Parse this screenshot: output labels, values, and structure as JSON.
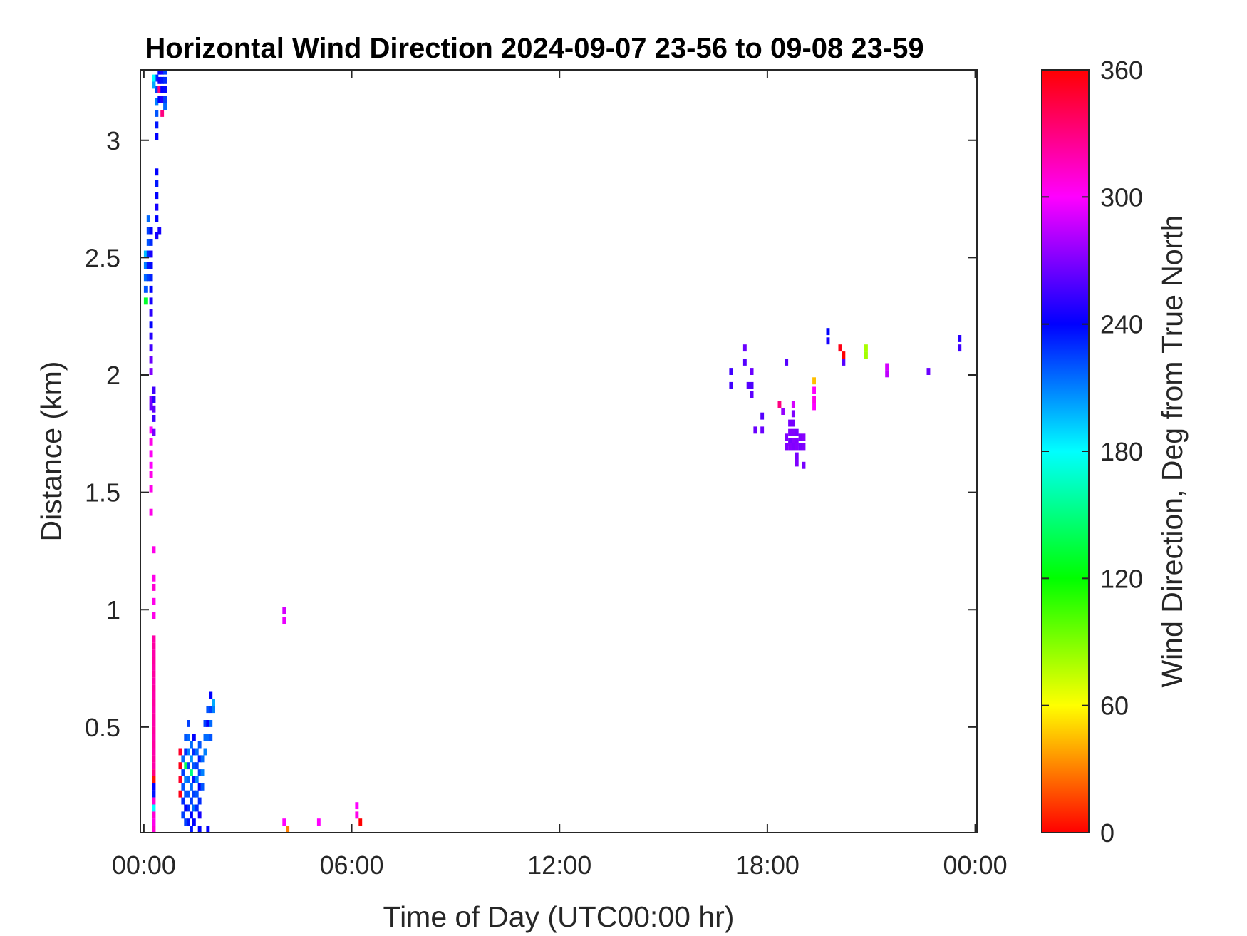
{
  "chart_data": {
    "type": "heatmap",
    "title": "Horizontal Wind Direction 2024-09-07 23-56 to 09-08 23-59",
    "xlabel": "Time of Day (UTC00:00 hr)",
    "ylabel": "Distance (km)",
    "colorbar_label": "Wind Direction, Deg from True North",
    "xlim": [
      -0.1,
      24.05
    ],
    "ylim": [
      0.05,
      3.3
    ],
    "clim": [
      0,
      360
    ],
    "x_ticks": [
      0,
      6,
      12,
      18,
      24
    ],
    "x_tick_labels": [
      "00:00",
      "06:00",
      "12:00",
      "18:00",
      "00:00"
    ],
    "y_ticks": [
      0.5,
      1,
      1.5,
      2,
      2.5,
      3
    ],
    "y_tick_labels": [
      "0.5",
      "1",
      "1.5",
      "2",
      "2.5",
      "3"
    ],
    "colorbar_ticks": [
      0,
      60,
      120,
      180,
      240,
      300,
      360
    ],
    "colorbar_tick_labels": [
      "0",
      "60",
      "120",
      "180",
      "240",
      "300",
      "360"
    ],
    "colormap": [
      "#ff0000",
      "#ffff00",
      "#00ff00",
      "#00ffff",
      "#0000ff",
      "#ff00ff",
      "#ff0000"
    ],
    "cell_width_hr": 0.1,
    "cell_height_km": 0.03,
    "cells": [
      {
        "x": 0.0,
        "y": 2.5,
        "v": 195
      },
      {
        "x": 0.0,
        "y": 2.45,
        "v": 210
      },
      {
        "x": 0.0,
        "y": 2.4,
        "v": 215
      },
      {
        "x": 0.0,
        "y": 2.35,
        "v": 220
      },
      {
        "x": 0.0,
        "y": 2.3,
        "v": 130
      },
      {
        "x": 0.08,
        "y": 2.65,
        "v": 215
      },
      {
        "x": 0.08,
        "y": 2.6,
        "v": 225
      },
      {
        "x": 0.08,
        "y": 2.55,
        "v": 220
      },
      {
        "x": 0.08,
        "y": 2.5,
        "v": 230
      },
      {
        "x": 0.08,
        "y": 2.45,
        "v": 235
      },
      {
        "x": 0.08,
        "y": 2.4,
        "v": 225
      },
      {
        "x": 0.16,
        "y": 2.6,
        "v": 240
      },
      {
        "x": 0.16,
        "y": 2.55,
        "v": 230
      },
      {
        "x": 0.16,
        "y": 2.5,
        "v": 245
      },
      {
        "x": 0.16,
        "y": 2.45,
        "v": 238
      },
      {
        "x": 0.16,
        "y": 2.4,
        "v": 232
      },
      {
        "x": 0.16,
        "y": 2.35,
        "v": 240
      },
      {
        "x": 0.16,
        "y": 2.3,
        "v": 245
      },
      {
        "x": 0.16,
        "y": 2.25,
        "v": 250
      },
      {
        "x": 0.16,
        "y": 2.2,
        "v": 240
      },
      {
        "x": 0.16,
        "y": 2.15,
        "v": 248
      },
      {
        "x": 0.16,
        "y": 2.1,
        "v": 255
      },
      {
        "x": 0.16,
        "y": 2.05,
        "v": 265
      },
      {
        "x": 0.16,
        "y": 2.0,
        "v": 270
      },
      {
        "x": 0.16,
        "y": 1.88,
        "v": 270
      },
      {
        "x": 0.16,
        "y": 1.85,
        "v": 265
      },
      {
        "x": 0.24,
        "y": 1.92,
        "v": 255
      },
      {
        "x": 0.24,
        "y": 1.88,
        "v": 250
      },
      {
        "x": 0.24,
        "y": 1.84,
        "v": 262
      },
      {
        "x": 0.24,
        "y": 1.8,
        "v": 255
      },
      {
        "x": 0.16,
        "y": 1.75,
        "v": 300
      },
      {
        "x": 0.16,
        "y": 1.7,
        "v": 305
      },
      {
        "x": 0.16,
        "y": 1.65,
        "v": 302
      },
      {
        "x": 0.16,
        "y": 1.6,
        "v": 300
      },
      {
        "x": 0.16,
        "y": 1.56,
        "v": 305
      },
      {
        "x": 0.16,
        "y": 1.5,
        "v": 305
      },
      {
        "x": 0.24,
        "y": 1.74,
        "v": 268
      },
      {
        "x": 0.16,
        "y": 1.4,
        "v": 305
      },
      {
        "x": 0.24,
        "y": 1.24,
        "v": 305
      },
      {
        "x": 0.24,
        "y": 1.12,
        "v": 305
      },
      {
        "x": 0.24,
        "y": 1.08,
        "v": 310
      },
      {
        "x": 0.24,
        "y": 1.02,
        "v": 305
      },
      {
        "x": 0.24,
        "y": 0.96,
        "v": 305
      },
      {
        "x": 0.24,
        "y": 0.86,
        "v": 320
      },
      {
        "x": 0.24,
        "y": 0.83,
        "v": 322
      },
      {
        "x": 0.24,
        "y": 0.8,
        "v": 320
      },
      {
        "x": 0.24,
        "y": 0.77,
        "v": 322
      },
      {
        "x": 0.24,
        "y": 0.74,
        "v": 320
      },
      {
        "x": 0.24,
        "y": 0.71,
        "v": 322
      },
      {
        "x": 0.24,
        "y": 0.68,
        "v": 320
      },
      {
        "x": 0.24,
        "y": 0.65,
        "v": 322
      },
      {
        "x": 0.24,
        "y": 0.62,
        "v": 320
      },
      {
        "x": 0.24,
        "y": 0.59,
        "v": 322
      },
      {
        "x": 0.24,
        "y": 0.56,
        "v": 320
      },
      {
        "x": 0.24,
        "y": 0.53,
        "v": 322
      },
      {
        "x": 0.24,
        "y": 0.5,
        "v": 320
      },
      {
        "x": 0.24,
        "y": 0.47,
        "v": 322
      },
      {
        "x": 0.24,
        "y": 0.44,
        "v": 320
      },
      {
        "x": 0.24,
        "y": 0.41,
        "v": 322
      },
      {
        "x": 0.24,
        "y": 0.38,
        "v": 320
      },
      {
        "x": 0.24,
        "y": 0.35,
        "v": 322
      },
      {
        "x": 0.24,
        "y": 0.32,
        "v": 320
      },
      {
        "x": 0.24,
        "y": 0.29,
        "v": 330
      },
      {
        "x": 0.24,
        "y": 0.26,
        "v": 5
      },
      {
        "x": 0.24,
        "y": 0.23,
        "v": 240
      },
      {
        "x": 0.24,
        "y": 0.2,
        "v": 235
      },
      {
        "x": 0.24,
        "y": 0.17,
        "v": 310
      },
      {
        "x": 0.24,
        "y": 0.14,
        "v": 180
      },
      {
        "x": 0.24,
        "y": 0.11,
        "v": 310
      },
      {
        "x": 0.24,
        "y": 0.08,
        "v": 305
      },
      {
        "x": 0.24,
        "y": 0.05,
        "v": 310
      },
      {
        "x": 0.32,
        "y": 2.85,
        "v": 240
      },
      {
        "x": 0.32,
        "y": 2.8,
        "v": 235
      },
      {
        "x": 0.32,
        "y": 2.75,
        "v": 240
      },
      {
        "x": 0.32,
        "y": 2.7,
        "v": 245
      },
      {
        "x": 0.32,
        "y": 2.65,
        "v": 240
      },
      {
        "x": 0.32,
        "y": 2.58,
        "v": 245
      },
      {
        "x": 0.32,
        "y": 3.0,
        "v": 240
      },
      {
        "x": 0.32,
        "y": 3.05,
        "v": 235
      },
      {
        "x": 0.32,
        "y": 3.1,
        "v": 220
      },
      {
        "x": 0.32,
        "y": 3.15,
        "v": 210
      },
      {
        "x": 0.32,
        "y": 3.2,
        "v": 225
      },
      {
        "x": 0.32,
        "y": 3.25,
        "v": 230
      },
      {
        "x": 0.24,
        "y": 3.25,
        "v": 180
      },
      {
        "x": 0.24,
        "y": 3.22,
        "v": 200
      },
      {
        "x": 0.4,
        "y": 3.28,
        "v": 240
      },
      {
        "x": 0.4,
        "y": 3.24,
        "v": 245
      },
      {
        "x": 0.4,
        "y": 3.2,
        "v": 330
      },
      {
        "x": 0.4,
        "y": 3.16,
        "v": 240
      },
      {
        "x": 0.48,
        "y": 3.28,
        "v": 245
      },
      {
        "x": 0.48,
        "y": 3.24,
        "v": 235
      },
      {
        "x": 0.48,
        "y": 3.2,
        "v": 240
      },
      {
        "x": 0.48,
        "y": 3.16,
        "v": 248
      },
      {
        "x": 0.48,
        "y": 3.1,
        "v": 330
      },
      {
        "x": 0.56,
        "y": 3.28,
        "v": 225
      },
      {
        "x": 0.56,
        "y": 3.24,
        "v": 230
      },
      {
        "x": 0.56,
        "y": 3.2,
        "v": 238
      },
      {
        "x": 0.56,
        "y": 3.16,
        "v": 225
      },
      {
        "x": 0.56,
        "y": 3.13,
        "v": 215
      },
      {
        "x": 0.4,
        "y": 2.6,
        "v": 245
      },
      {
        "x": 1.0,
        "y": 0.38,
        "v": 350
      },
      {
        "x": 1.0,
        "y": 0.32,
        "v": 355
      },
      {
        "x": 1.0,
        "y": 0.26,
        "v": 350
      },
      {
        "x": 1.0,
        "y": 0.2,
        "v": 355
      },
      {
        "x": 1.08,
        "y": 0.35,
        "v": 215
      },
      {
        "x": 1.08,
        "y": 0.29,
        "v": 225
      },
      {
        "x": 1.08,
        "y": 0.23,
        "v": 220
      },
      {
        "x": 1.08,
        "y": 0.17,
        "v": 230
      },
      {
        "x": 1.08,
        "y": 0.11,
        "v": 225
      },
      {
        "x": 1.16,
        "y": 0.44,
        "v": 220
      },
      {
        "x": 1.16,
        "y": 0.38,
        "v": 230
      },
      {
        "x": 1.16,
        "y": 0.32,
        "v": 140
      },
      {
        "x": 1.16,
        "y": 0.26,
        "v": 210
      },
      {
        "x": 1.16,
        "y": 0.2,
        "v": 220
      },
      {
        "x": 1.16,
        "y": 0.14,
        "v": 240
      },
      {
        "x": 1.16,
        "y": 0.08,
        "v": 225
      },
      {
        "x": 1.24,
        "y": 0.5,
        "v": 225
      },
      {
        "x": 1.24,
        "y": 0.44,
        "v": 215
      },
      {
        "x": 1.24,
        "y": 0.38,
        "v": 210
      },
      {
        "x": 1.24,
        "y": 0.32,
        "v": 225
      },
      {
        "x": 1.24,
        "y": 0.26,
        "v": 215
      },
      {
        "x": 1.24,
        "y": 0.2,
        "v": 220
      },
      {
        "x": 1.24,
        "y": 0.14,
        "v": 230
      },
      {
        "x": 1.24,
        "y": 0.08,
        "v": 235
      },
      {
        "x": 1.32,
        "y": 0.41,
        "v": 215
      },
      {
        "x": 1.32,
        "y": 0.35,
        "v": 205
      },
      {
        "x": 1.32,
        "y": 0.29,
        "v": 150
      },
      {
        "x": 1.32,
        "y": 0.23,
        "v": 215
      },
      {
        "x": 1.32,
        "y": 0.17,
        "v": 225
      },
      {
        "x": 1.32,
        "y": 0.11,
        "v": 240
      },
      {
        "x": 1.32,
        "y": 0.05,
        "v": 235
      },
      {
        "x": 1.4,
        "y": 0.44,
        "v": 240
      },
      {
        "x": 1.4,
        "y": 0.38,
        "v": 230
      },
      {
        "x": 1.4,
        "y": 0.32,
        "v": 220
      },
      {
        "x": 1.4,
        "y": 0.26,
        "v": 235
      },
      {
        "x": 1.4,
        "y": 0.2,
        "v": 225
      },
      {
        "x": 1.4,
        "y": 0.14,
        "v": 215
      },
      {
        "x": 1.4,
        "y": 0.08,
        "v": 240
      },
      {
        "x": 1.48,
        "y": 0.38,
        "v": 215
      },
      {
        "x": 1.48,
        "y": 0.32,
        "v": 225
      },
      {
        "x": 1.48,
        "y": 0.26,
        "v": 210
      },
      {
        "x": 1.48,
        "y": 0.2,
        "v": 220
      },
      {
        "x": 1.48,
        "y": 0.14,
        "v": 230
      },
      {
        "x": 1.56,
        "y": 0.41,
        "v": 220
      },
      {
        "x": 1.56,
        "y": 0.35,
        "v": 235
      },
      {
        "x": 1.56,
        "y": 0.29,
        "v": 225
      },
      {
        "x": 1.56,
        "y": 0.23,
        "v": 240
      },
      {
        "x": 1.56,
        "y": 0.17,
        "v": 230
      },
      {
        "x": 1.56,
        "y": 0.11,
        "v": 245
      },
      {
        "x": 1.56,
        "y": 0.05,
        "v": 240
      },
      {
        "x": 1.64,
        "y": 0.35,
        "v": 215
      },
      {
        "x": 1.64,
        "y": 0.29,
        "v": 210
      },
      {
        "x": 1.64,
        "y": 0.23,
        "v": 220
      },
      {
        "x": 1.72,
        "y": 0.5,
        "v": 225
      },
      {
        "x": 1.72,
        "y": 0.44,
        "v": 215
      },
      {
        "x": 1.72,
        "y": 0.38,
        "v": 210
      },
      {
        "x": 1.8,
        "y": 0.56,
        "v": 220
      },
      {
        "x": 1.8,
        "y": 0.5,
        "v": 240
      },
      {
        "x": 1.8,
        "y": 0.44,
        "v": 215
      },
      {
        "x": 1.8,
        "y": 0.05,
        "v": 240
      },
      {
        "x": 1.88,
        "y": 0.62,
        "v": 240
      },
      {
        "x": 1.88,
        "y": 0.56,
        "v": 225
      },
      {
        "x": 1.88,
        "y": 0.5,
        "v": 215
      },
      {
        "x": 1.88,
        "y": 0.44,
        "v": 220
      },
      {
        "x": 1.96,
        "y": 0.59,
        "v": 200
      },
      {
        "x": 1.96,
        "y": 0.56,
        "v": 210
      },
      {
        "x": 4.0,
        "y": 0.98,
        "v": 290
      },
      {
        "x": 4.0,
        "y": 0.94,
        "v": 295
      },
      {
        "x": 4.0,
        "y": 0.08,
        "v": 300
      },
      {
        "x": 4.1,
        "y": 0.05,
        "v": 30
      },
      {
        "x": 5.0,
        "y": 0.08,
        "v": 300
      },
      {
        "x": 6.1,
        "y": 0.15,
        "v": 300
      },
      {
        "x": 6.1,
        "y": 0.11,
        "v": 305
      },
      {
        "x": 6.2,
        "y": 0.08,
        "v": 0
      },
      {
        "x": 16.9,
        "y": 2.0,
        "v": 255
      },
      {
        "x": 16.9,
        "y": 1.94,
        "v": 255
      },
      {
        "x": 17.3,
        "y": 2.1,
        "v": 265
      },
      {
        "x": 17.3,
        "y": 2.04,
        "v": 260
      },
      {
        "x": 17.4,
        "y": 1.94,
        "v": 260
      },
      {
        "x": 17.5,
        "y": 2.0,
        "v": 265
      },
      {
        "x": 17.5,
        "y": 1.94,
        "v": 258
      },
      {
        "x": 17.5,
        "y": 1.9,
        "v": 262
      },
      {
        "x": 17.6,
        "y": 1.75,
        "v": 265
      },
      {
        "x": 17.8,
        "y": 1.81,
        "v": 260
      },
      {
        "x": 17.8,
        "y": 1.75,
        "v": 265
      },
      {
        "x": 18.3,
        "y": 1.86,
        "v": 330
      },
      {
        "x": 18.4,
        "y": 1.83,
        "v": 275
      },
      {
        "x": 18.5,
        "y": 2.04,
        "v": 260
      },
      {
        "x": 18.5,
        "y": 1.72,
        "v": 270
      },
      {
        "x": 18.5,
        "y": 1.68,
        "v": 270
      },
      {
        "x": 18.6,
        "y": 1.78,
        "v": 268
      },
      {
        "x": 18.6,
        "y": 1.74,
        "v": 270
      },
      {
        "x": 18.6,
        "y": 1.7,
        "v": 268
      },
      {
        "x": 18.6,
        "y": 1.68,
        "v": 272
      },
      {
        "x": 18.7,
        "y": 1.86,
        "v": 290
      },
      {
        "x": 18.7,
        "y": 1.82,
        "v": 270
      },
      {
        "x": 18.7,
        "y": 1.78,
        "v": 268
      },
      {
        "x": 18.7,
        "y": 1.74,
        "v": 270
      },
      {
        "x": 18.7,
        "y": 1.7,
        "v": 272
      },
      {
        "x": 18.7,
        "y": 1.68,
        "v": 270
      },
      {
        "x": 18.8,
        "y": 1.74,
        "v": 268
      },
      {
        "x": 18.8,
        "y": 1.7,
        "v": 270
      },
      {
        "x": 18.8,
        "y": 1.68,
        "v": 272
      },
      {
        "x": 18.8,
        "y": 1.64,
        "v": 268
      },
      {
        "x": 18.8,
        "y": 1.61,
        "v": 270
      },
      {
        "x": 18.9,
        "y": 1.72,
        "v": 270
      },
      {
        "x": 18.9,
        "y": 1.68,
        "v": 268
      },
      {
        "x": 19.0,
        "y": 1.72,
        "v": 272
      },
      {
        "x": 19.0,
        "y": 1.68,
        "v": 270
      },
      {
        "x": 19.0,
        "y": 1.6,
        "v": 268
      },
      {
        "x": 19.3,
        "y": 1.96,
        "v": 45
      },
      {
        "x": 19.3,
        "y": 1.92,
        "v": 300
      },
      {
        "x": 19.3,
        "y": 1.88,
        "v": 305
      },
      {
        "x": 19.3,
        "y": 1.85,
        "v": 300
      },
      {
        "x": 19.7,
        "y": 2.17,
        "v": 240
      },
      {
        "x": 19.7,
        "y": 2.13,
        "v": 245
      },
      {
        "x": 20.05,
        "y": 2.1,
        "v": 355
      },
      {
        "x": 20.15,
        "y": 2.07,
        "v": 0
      },
      {
        "x": 20.15,
        "y": 2.04,
        "v": 260
      },
      {
        "x": 20.8,
        "y": 2.1,
        "v": 80
      },
      {
        "x": 20.8,
        "y": 2.07,
        "v": 82
      },
      {
        "x": 21.4,
        "y": 2.02,
        "v": 290
      },
      {
        "x": 21.4,
        "y": 1.99,
        "v": 285
      },
      {
        "x": 22.6,
        "y": 2.0,
        "v": 265
      },
      {
        "x": 23.5,
        "y": 2.14,
        "v": 250
      },
      {
        "x": 23.5,
        "y": 2.1,
        "v": 255
      }
    ]
  }
}
